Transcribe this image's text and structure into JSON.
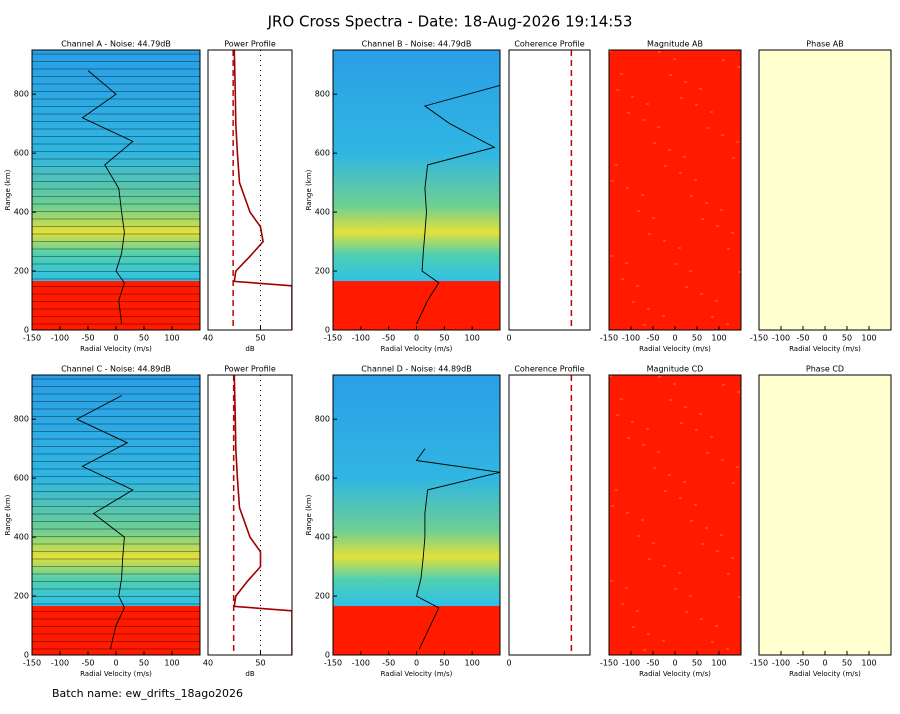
{
  "title": "JRO Cross Spectra - Date: 18-Aug-2026 19:14:53",
  "footer": "Batch name: ew_drifts_18ago2026",
  "chart_data": [
    {
      "type": "heatmap",
      "colormap": "striped",
      "title": "Channel A - Noise: 44.79dB",
      "xlabel": "Radial Velocity (m/s)",
      "ylabel": "Range (km)",
      "xlim": [
        -150,
        150
      ],
      "ylim": [
        0,
        950
      ],
      "xticks": [
        -150,
        -100,
        -50,
        0,
        50,
        100
      ],
      "yticks": [
        0,
        200,
        400,
        600,
        800
      ],
      "line": {
        "range": [
          20,
          100,
          160,
          200,
          260,
          330,
          400,
          480,
          560,
          640,
          720,
          800,
          880
        ],
        "values": [
          10,
          5,
          15,
          0,
          10,
          15,
          10,
          5,
          -20,
          30,
          -60,
          0,
          -50
        ]
      }
    },
    {
      "type": "profile",
      "title": "Power Profile",
      "xlabel": "dB",
      "xlim": [
        40,
        56
      ],
      "ylim": [
        0,
        950
      ],
      "xticks": [
        40,
        50
      ],
      "noise": 44.79,
      "color": "#a00000",
      "line": {
        "range": [
          0,
          150,
          165,
          200,
          250,
          300,
          350,
          400,
          500,
          600,
          700,
          800,
          950
        ],
        "values": [
          56,
          56,
          45,
          45.3,
          48,
          50.5,
          50,
          48,
          46,
          45.6,
          45.3,
          45.2,
          45
        ]
      }
    },
    {
      "type": "heatmap",
      "colormap": "spectra",
      "title": "Channel B - Noise: 44.79dB",
      "xlabel": "Radial Velocity (m/s)",
      "ylabel": "Range (km)",
      "xlim": [
        -150,
        150
      ],
      "ylim": [
        0,
        950
      ],
      "xticks": [
        -150,
        -100,
        -50,
        0,
        50,
        100
      ],
      "yticks": [
        0,
        200,
        400,
        600,
        800
      ],
      "line": {
        "range": [
          20,
          100,
          160,
          200,
          260,
          330,
          400,
          480,
          560,
          620,
          700,
          760,
          830
        ],
        "values": [
          0,
          20,
          40,
          10,
          12,
          15,
          18,
          15,
          20,
          140,
          60,
          15,
          150
        ]
      }
    },
    {
      "type": "profile",
      "title": "Coherence Profile",
      "xlim": [
        0,
        1
      ],
      "ylim": [
        0,
        950
      ],
      "xticks": [
        0
      ],
      "noise": 0.77,
      "color": "#000000"
    },
    {
      "type": "heatmap",
      "colormap": "red",
      "title": "Magnitude AB",
      "xlabel": "Radial Velocity (m/s)",
      "xlim": [
        -150,
        150
      ],
      "ylim": [
        0,
        950
      ],
      "xticks": [
        -150,
        -100,
        -50,
        0,
        50,
        100
      ]
    },
    {
      "type": "heatmap",
      "colormap": "cream",
      "title": "Phase AB",
      "xlabel": "Radial Velocity (m/s)",
      "xlim": [
        -150,
        150
      ],
      "ylim": [
        0,
        950
      ],
      "xticks": [
        -150,
        -100,
        -50,
        0,
        50,
        100
      ]
    },
    {
      "type": "heatmap",
      "colormap": "striped",
      "title": "Channel C - Noise: 44.89dB",
      "xlabel": "Radial Velocity (m/s)",
      "ylabel": "Range (km)",
      "xlim": [
        -150,
        150
      ],
      "ylim": [
        0,
        950
      ],
      "xticks": [
        -150,
        -100,
        -50,
        0,
        50,
        100
      ],
      "yticks": [
        0,
        200,
        400,
        600,
        800
      ],
      "line": {
        "range": [
          20,
          100,
          160,
          200,
          260,
          330,
          400,
          480,
          560,
          640,
          720,
          800,
          880
        ],
        "values": [
          -10,
          0,
          15,
          5,
          10,
          12,
          15,
          -40,
          30,
          -60,
          20,
          -70,
          10
        ]
      }
    },
    {
      "type": "profile",
      "title": "Power Profile",
      "xlabel": "dB",
      "xlim": [
        40,
        56
      ],
      "ylim": [
        0,
        950
      ],
      "xticks": [
        40,
        50
      ],
      "noise": 44.89,
      "color": "#a00000",
      "line": {
        "range": [
          0,
          150,
          165,
          200,
          250,
          300,
          350,
          400,
          500,
          600,
          700,
          800,
          950
        ],
        "values": [
          56,
          56,
          45,
          45.3,
          47.5,
          50,
          50,
          48,
          46,
          45.6,
          45.3,
          45.2,
          45
        ]
      }
    },
    {
      "type": "heatmap",
      "colormap": "spectra",
      "title": "Channel D - Noise: 44.89dB",
      "xlabel": "Radial Velocity (m/s)",
      "ylabel": "Range (km)",
      "xlim": [
        -150,
        150
      ],
      "ylim": [
        0,
        950
      ],
      "xticks": [
        -150,
        -100,
        -50,
        0,
        50,
        100
      ],
      "yticks": [
        0,
        200,
        400,
        600,
        800
      ],
      "line": {
        "range": [
          20,
          100,
          160,
          200,
          260,
          330,
          400,
          480,
          560,
          620,
          660,
          700
        ],
        "values": [
          5,
          25,
          40,
          0,
          8,
          12,
          15,
          15,
          20,
          150,
          0,
          15
        ]
      }
    },
    {
      "type": "profile",
      "title": "Coherence Profile",
      "xlim": [
        0,
        1
      ],
      "ylim": [
        0,
        950
      ],
      "xticks": [
        0
      ],
      "noise": 0.77,
      "color": "#000000"
    },
    {
      "type": "heatmap",
      "colormap": "red",
      "title": "Magnitude CD",
      "xlabel": "Radial Velocity (m/s)",
      "xlim": [
        -150,
        150
      ],
      "ylim": [
        0,
        950
      ],
      "xticks": [
        -150,
        -100,
        -50,
        0,
        50,
        100
      ]
    },
    {
      "type": "heatmap",
      "colormap": "cream",
      "title": "Phase CD",
      "xlabel": "Radial Velocity (m/s)",
      "xlim": [
        -150,
        150
      ],
      "ylim": [
        0,
        950
      ],
      "xticks": [
        -150,
        -100,
        -50,
        0,
        50,
        100
      ]
    }
  ]
}
